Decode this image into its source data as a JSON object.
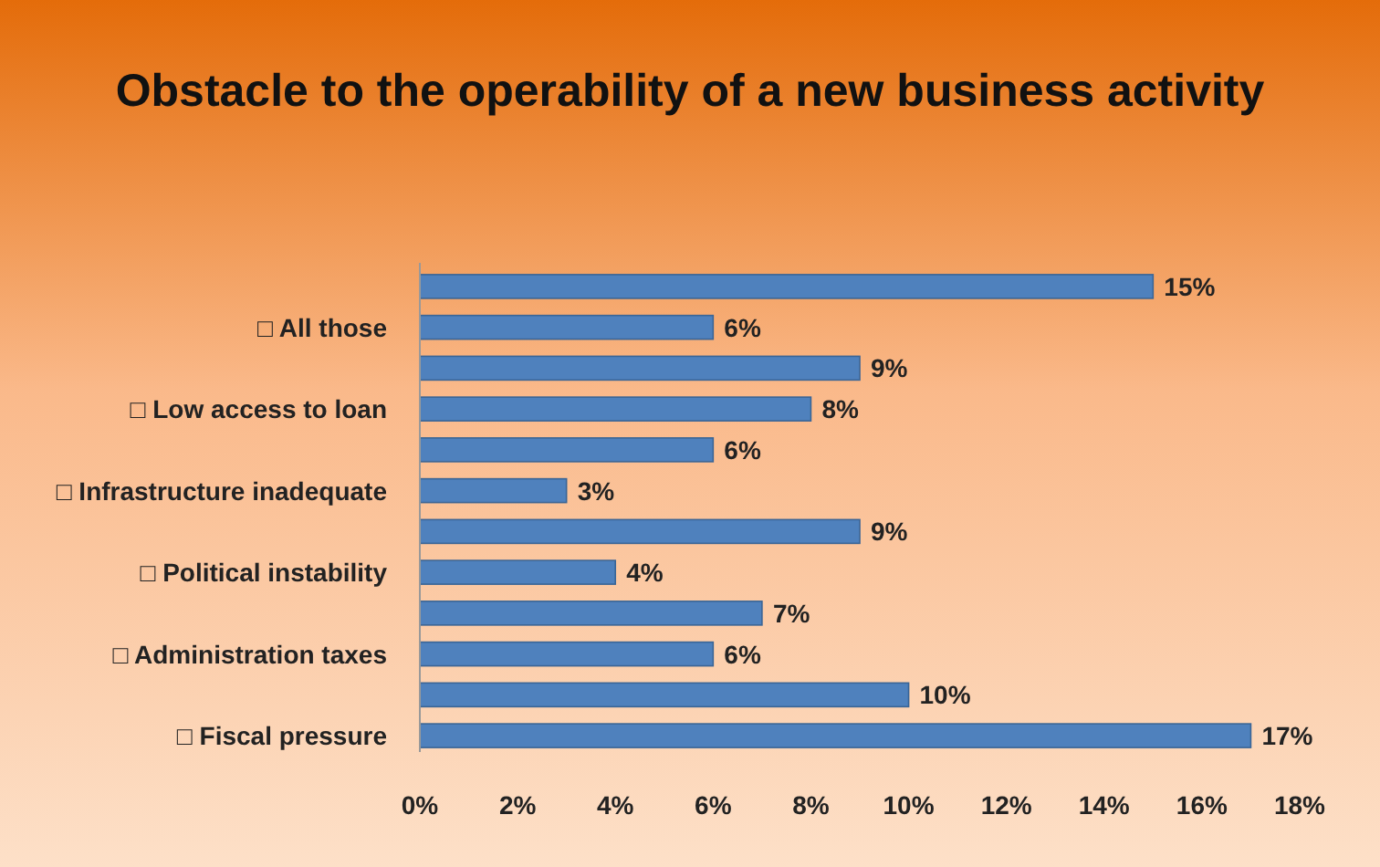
{
  "chart_data": {
    "type": "bar",
    "orientation": "horizontal",
    "title": "Obstacle to the operability of a new business activity",
    "categories": [
      null,
      "□ All those",
      null,
      "□ Low access to loan",
      null,
      "□ Infrastructure inadequate",
      null,
      "□ Political instability",
      null,
      "□ Administration taxes",
      null,
      "□ Fiscal pressure"
    ],
    "values": [
      15,
      6,
      9,
      8,
      6,
      3,
      9,
      4,
      7,
      6,
      10,
      17
    ],
    "value_labels": [
      "15%",
      "6%",
      "9%",
      "8%",
      "6%",
      "3%",
      "9%",
      "4%",
      "7%",
      "6%",
      "10%",
      "17%"
    ],
    "color": "#4f81bd",
    "xlim": [
      0,
      18
    ],
    "xticks": [
      {
        "value": 0,
        "label": "0%"
      },
      {
        "value": 2,
        "label": "2%"
      },
      {
        "value": 4,
        "label": "4%"
      },
      {
        "value": 6,
        "label": "6%"
      },
      {
        "value": 8,
        "label": "8%"
      },
      {
        "value": 10,
        "label": "10%"
      },
      {
        "value": 12,
        "label": "12%"
      },
      {
        "value": 14,
        "label": "14%"
      },
      {
        "value": 16,
        "label": "16%"
      },
      {
        "value": 18,
        "label": "18%"
      }
    ],
    "grid": false
  }
}
